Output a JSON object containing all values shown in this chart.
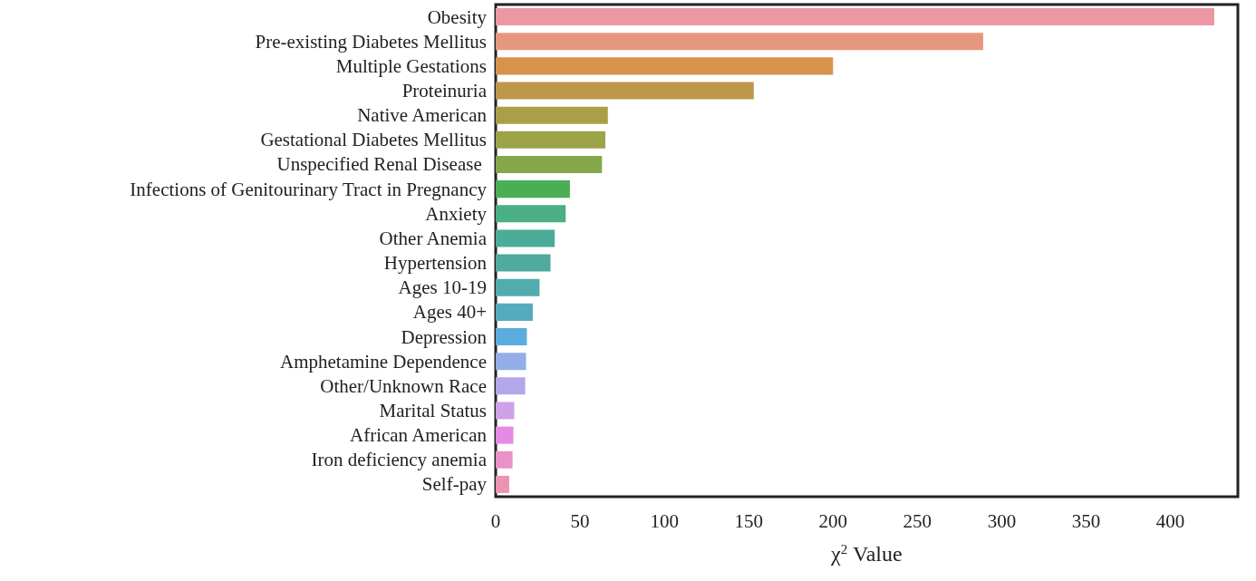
{
  "chart_data": {
    "type": "bar",
    "orientation": "horizontal",
    "xlabel": "χ$^{2}$ Value",
    "categories": [
      "Obesity",
      "Pre-existing Diabetes Mellitus",
      "Multiple Gestations",
      "Proteinuria",
      "Native American",
      "Gestational Diabetes Mellitus",
      "Unspecified Renal Disease ",
      "Infections of Genitourinary Tract in Pregnancy",
      "Anxiety",
      "Other Anemia",
      "Hypertension",
      "Ages 10-19",
      "Ages 40+",
      "Depression",
      "Amphetamine Dependence",
      "Other/Unknown Race",
      "Marital Status",
      "African American",
      "Iron deficiency anemia",
      "Self-pay"
    ],
    "values": [
      426,
      289,
      200,
      153,
      66.5,
      65,
      63,
      44,
      41.5,
      35,
      32.5,
      26,
      22,
      18.5,
      18,
      17.5,
      11,
      10.5,
      10,
      8
    ],
    "colors": [
      "#ec97a3",
      "#e8977f",
      "#d8934b",
      "#bd974a",
      "#ab9e48",
      "#9da347",
      "#84a849",
      "#4aae54",
      "#4aaf83",
      "#4bac99",
      "#4fab9e",
      "#52acad",
      "#54abbd",
      "#5aaddd",
      "#93aee6",
      "#b3a7e8",
      "#d0a1e6",
      "#e68ae4",
      "#e892c8",
      "#ea94b2"
    ],
    "xlim": [
      0,
      440
    ],
    "xticks": [
      0,
      50,
      100,
      150,
      200,
      250,
      300,
      350,
      400
    ],
    "grid": false
  }
}
